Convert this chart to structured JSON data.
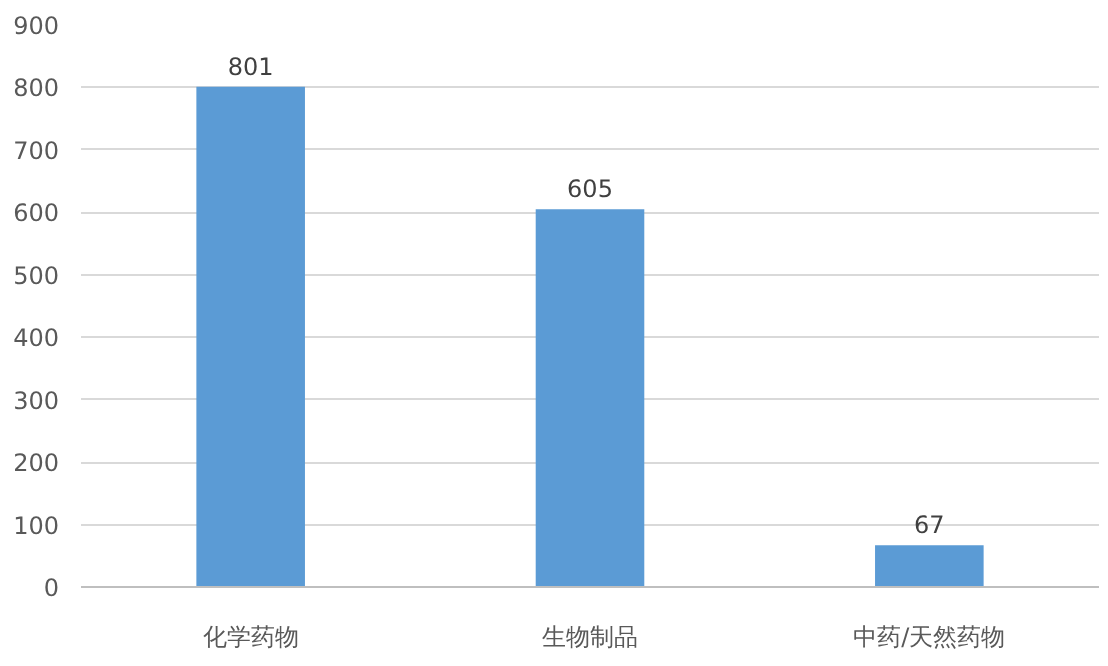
{
  "chart_data": {
    "type": "bar",
    "categories": [
      "化学药物",
      "生物制品",
      "中药/天然药物"
    ],
    "values": [
      801,
      605,
      67
    ],
    "color": "#5b9bd5",
    "ylim": [
      0,
      900
    ],
    "yticks": [
      0,
      100,
      200,
      300,
      400,
      500,
      600,
      700,
      800,
      900
    ],
    "grid": "y",
    "data_labels": true
  }
}
